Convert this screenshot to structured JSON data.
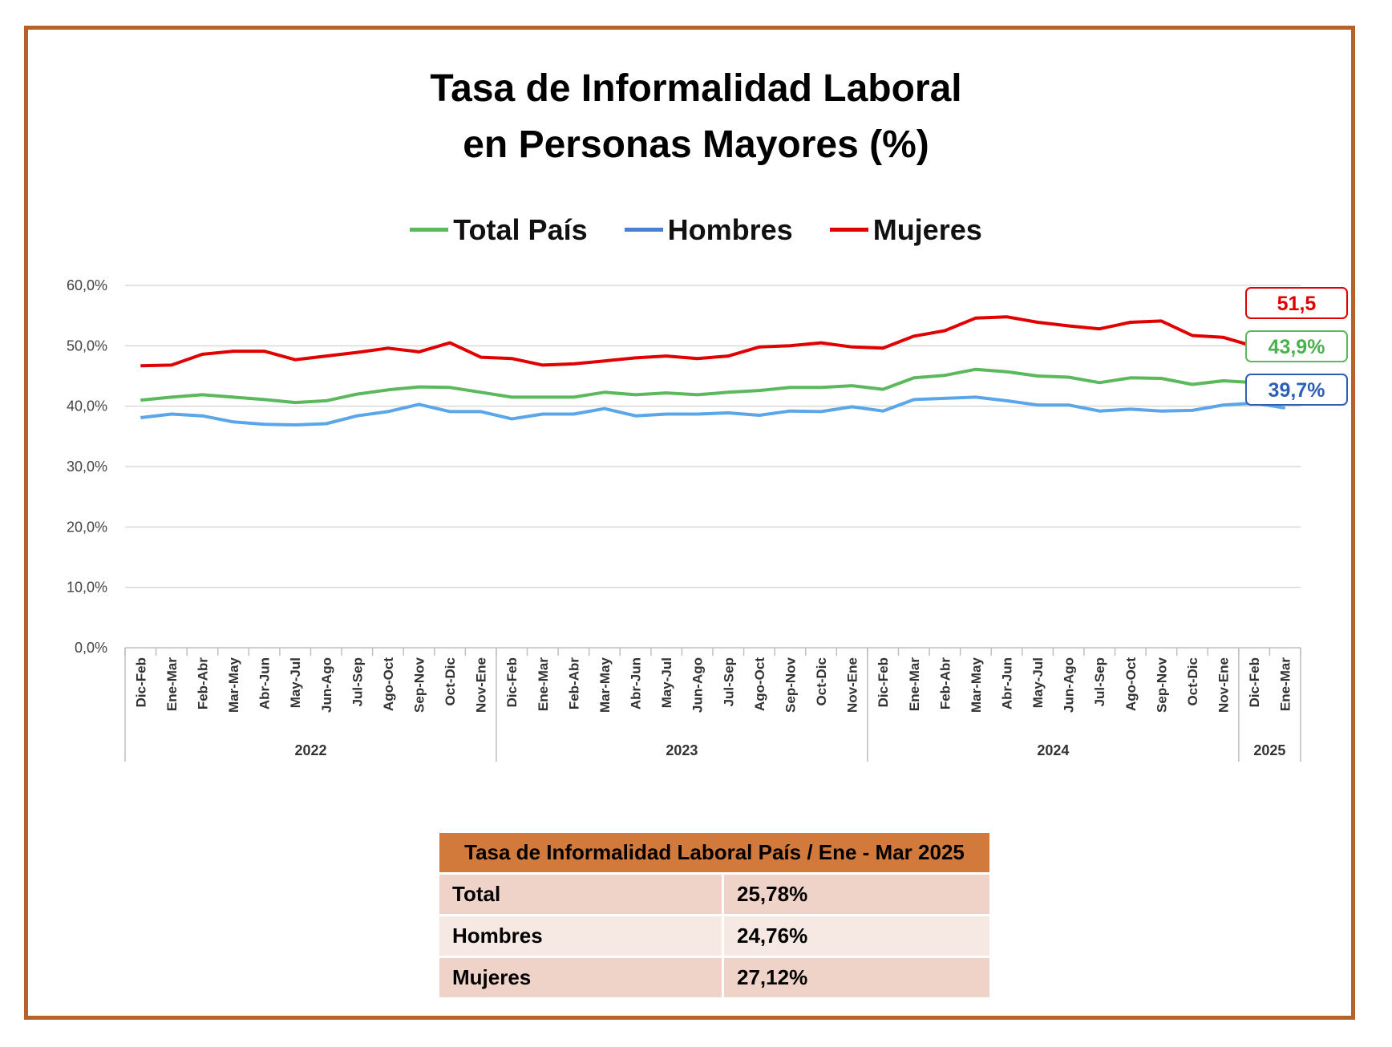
{
  "title_line1": "Tasa de Informalidad Laboral",
  "title_line2": "en Personas Mayores (%)",
  "legend": [
    {
      "name": "Total País",
      "color": "#5cb85c"
    },
    {
      "name": "Hombres",
      "color": "#4a7fd1"
    },
    {
      "name": "Mujeres",
      "color": "#e00000"
    }
  ],
  "chart_data": {
    "type": "line",
    "title": "Tasa de Informalidad Laboral en Personas Mayores (%)",
    "ylim": [
      0,
      60
    ],
    "y_ticks": [
      "0,0%",
      "10,0%",
      "20,0%",
      "30,0%",
      "40,0%",
      "50,0%",
      "60,0%"
    ],
    "grid": true,
    "legend_position": "top",
    "categories": [
      "Dic-Feb",
      "Ene-Mar",
      "Feb-Abr",
      "Mar-May",
      "Abr-Jun",
      "May-Jul",
      "Jun-Ago",
      "Jul-Sep",
      "Ago-Oct",
      "Sep-Nov",
      "Oct-Dic",
      "Nov-Ene",
      "Dic-Feb",
      "Ene-Mar",
      "Feb-Abr",
      "Mar-May",
      "Abr-Jun",
      "May-Jul",
      "Jun-Ago",
      "Jul-Sep",
      "Ago-Oct",
      "Sep-Nov",
      "Oct-Dic",
      "Nov-Ene",
      "Dic-Feb",
      "Ene-Mar",
      "Feb-Abr",
      "Mar-May",
      "Abr-Jun",
      "May-Jul",
      "Jun-Ago",
      "Jul-Sep",
      "Ago-Oct",
      "Sep-Nov",
      "Oct-Dic",
      "Nov-Ene",
      "Dic-Feb",
      "Ene-Mar"
    ],
    "year_groups": [
      {
        "label": "2022",
        "start": 0,
        "end": 11
      },
      {
        "label": "2023",
        "start": 12,
        "end": 23
      },
      {
        "label": "2024",
        "start": 24,
        "end": 35
      },
      {
        "label": "2025",
        "start": 36,
        "end": 37
      }
    ],
    "series": [
      {
        "name": "Mujeres",
        "color": "#e00000",
        "values": [
          46.7,
          46.8,
          48.6,
          49.1,
          49.1,
          47.7,
          48.3,
          48.9,
          49.6,
          49.0,
          50.5,
          48.1,
          47.9,
          46.8,
          47.0,
          47.5,
          48.0,
          48.3,
          47.9,
          48.3,
          49.8,
          50.0,
          50.5,
          49.8,
          49.6,
          51.6,
          52.5,
          54.6,
          54.8,
          53.9,
          53.3,
          52.8,
          53.9,
          54.1,
          51.7,
          51.4,
          49.9,
          51.5
        ],
        "end_label": "51,5"
      },
      {
        "name": "Total País",
        "color": "#5cb85c",
        "values": [
          41.0,
          41.5,
          41.9,
          41.5,
          41.1,
          40.6,
          40.9,
          42.0,
          42.7,
          43.2,
          43.1,
          42.3,
          41.5,
          41.5,
          41.5,
          42.3,
          41.9,
          42.2,
          41.9,
          42.3,
          42.6,
          43.1,
          43.1,
          43.4,
          42.8,
          44.7,
          45.1,
          46.1,
          45.7,
          45.0,
          44.8,
          43.9,
          44.7,
          44.6,
          43.6,
          44.2,
          43.9,
          43.9
        ],
        "end_label": "43,9%"
      },
      {
        "name": "Hombres",
        "color": "#5aa6e8",
        "values": [
          38.1,
          38.7,
          38.4,
          37.4,
          37.0,
          36.9,
          37.1,
          38.4,
          39.1,
          40.3,
          39.1,
          39.1,
          37.9,
          38.7,
          38.7,
          39.6,
          38.4,
          38.7,
          38.7,
          38.9,
          38.5,
          39.2,
          39.1,
          39.9,
          39.2,
          41.1,
          41.3,
          41.5,
          40.9,
          40.2,
          40.2,
          39.2,
          39.5,
          39.2,
          39.3,
          40.2,
          40.5,
          39.7
        ],
        "end_label": "39,7%"
      }
    ]
  },
  "table": {
    "header": "Tasa de Informalidad Laboral País / Ene - Mar 2025",
    "rows": [
      {
        "label": "Total",
        "value": "25,78%"
      },
      {
        "label": "Hombres",
        "value": "24,76%"
      },
      {
        "label": "Mujeres",
        "value": "27,12%"
      }
    ]
  }
}
